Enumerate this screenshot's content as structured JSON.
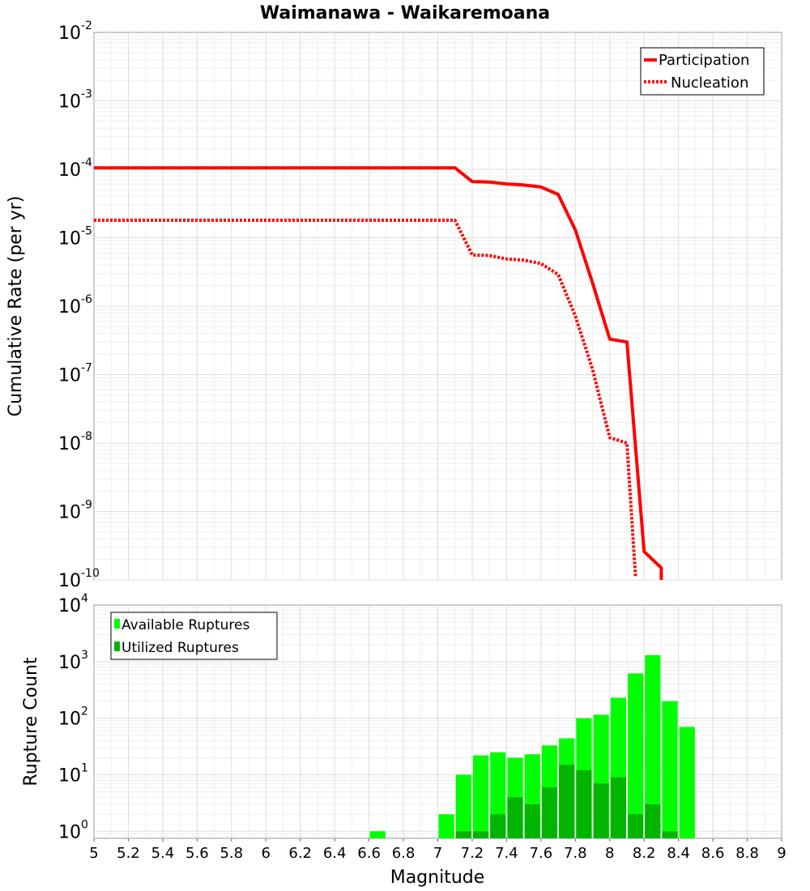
{
  "chart_data": [
    {
      "type": "line",
      "title": "Waimanawa - Waikaremoana",
      "xlabel": "Magnitude",
      "ylabel": "Cumulative Rate (per yr)",
      "xlim": [
        5,
        9
      ],
      "ylim": [
        1e-10,
        0.01
      ],
      "yscale": "log",
      "grid": true,
      "legend_position": "top-right",
      "colors": {
        "participation": "#ff0000",
        "nucleation": "#ff0000"
      },
      "series": [
        {
          "name": "Participation",
          "style": "solid",
          "x": [
            5.0,
            7.1,
            7.2,
            7.3,
            7.4,
            7.5,
            7.6,
            7.7,
            7.8,
            7.9,
            8.0,
            8.1,
            8.2,
            8.3,
            8.3
          ],
          "y": [
            0.000105,
            0.000105,
            6.6e-05,
            6.5e-05,
            6.1e-05,
            5.9e-05,
            5.5e-05,
            4.3e-05,
            1.3e-05,
            2.2e-06,
            3.3e-07,
            3e-07,
            2.6e-10,
            1.5e-10,
            1e-10
          ]
        },
        {
          "name": "Nucleation",
          "style": "dotted",
          "x": [
            5.0,
            7.1,
            7.2,
            7.3,
            7.4,
            7.5,
            7.6,
            7.7,
            7.8,
            7.9,
            8.0,
            8.1,
            8.15
          ],
          "y": [
            1.8e-05,
            1.8e-05,
            5.6e-06,
            5.5e-06,
            4.9e-06,
            4.7e-06,
            4.2e-06,
            2.9e-06,
            7.2e-07,
            1.2e-07,
            1.2e-08,
            1e-08,
            1.1e-10
          ]
        }
      ]
    },
    {
      "type": "bar",
      "xlabel": "Magnitude",
      "ylabel": "Rupture Count",
      "xlim": [
        5,
        9
      ],
      "ylim": [
        0.75,
        10000
      ],
      "yscale": "log",
      "grid": true,
      "legend_position": "top-left",
      "bar_width": 0.1,
      "colors": {
        "available": "#00ff00",
        "utilized": "#00b400"
      },
      "series": [
        {
          "name": "Available Ruptures",
          "x": [
            6.65,
            7.05,
            7.15,
            7.25,
            7.35,
            7.45,
            7.55,
            7.65,
            7.75,
            7.85,
            7.95,
            8.05,
            8.15,
            8.25,
            8.35,
            8.45
          ],
          "values": [
            1,
            2,
            10,
            22,
            25,
            20,
            23,
            33,
            44,
            100,
            115,
            230,
            620,
            1300,
            200,
            70
          ]
        },
        {
          "name": "Utilized Ruptures",
          "x": [
            7.15,
            7.25,
            7.35,
            7.45,
            7.55,
            7.65,
            7.75,
            7.85,
            7.95,
            8.05,
            8.15,
            8.25,
            8.35
          ],
          "values": [
            1,
            1,
            2,
            4,
            3,
            6,
            15,
            12,
            7,
            9,
            2,
            3,
            1
          ]
        }
      ],
      "x_ticks": [
        "5",
        "5.2",
        "5.4",
        "5.6",
        "5.8",
        "6",
        "6.2",
        "6.4",
        "6.6",
        "6.8",
        "7",
        "7.2",
        "7.4",
        "7.6",
        "7.8",
        "8",
        "8.2",
        "8.4",
        "8.6",
        "8.8",
        "9"
      ]
    }
  ]
}
